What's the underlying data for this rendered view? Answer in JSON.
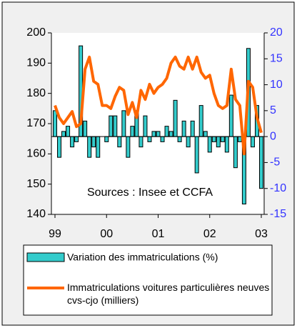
{
  "chart_data": {
    "type": "bar-line",
    "annotation": "Sources :  Insee et CCFA",
    "categories": [
      "99",
      null,
      null,
      null,
      null,
      null,
      null,
      null,
      null,
      null,
      null,
      null,
      "00",
      null,
      null,
      null,
      null,
      null,
      null,
      null,
      null,
      null,
      null,
      null,
      "01",
      null,
      null,
      null,
      null,
      null,
      null,
      null,
      null,
      null,
      null,
      null,
      "02",
      null,
      null,
      null,
      null,
      null,
      null,
      null,
      null,
      null,
      null,
      null,
      "03"
    ],
    "series": [
      {
        "name": "Variation des immatriculations (%)",
        "type": "bar",
        "axis": "y2",
        "color": "#33cccc",
        "values": [
          5,
          -4,
          1,
          2,
          -2,
          -1,
          17.5,
          3,
          -4,
          -2,
          -4,
          0,
          -1,
          4,
          4,
          -2,
          5,
          -4,
          2,
          5,
          -2,
          4,
          -1,
          1,
          1,
          -1,
          2,
          1,
          7,
          -1,
          3,
          -2,
          3,
          -7,
          6,
          1,
          -3,
          -1,
          -2,
          -1,
          -3,
          8,
          -6,
          -1,
          -13,
          17,
          -2,
          6,
          -10
        ]
      },
      {
        "name": "Immatriculations voitures particulières neuves cvs-cjo (milliers)",
        "type": "line",
        "axis": "y",
        "color": "#ff6600",
        "values": [
          176,
          172,
          170,
          172,
          174,
          169,
          170,
          188,
          192,
          184,
          183,
          176,
          176,
          175,
          179,
          182,
          181,
          173,
          177,
          172,
          181,
          178,
          183,
          180,
          182,
          183,
          185,
          190,
          192,
          189,
          188,
          192,
          188,
          192,
          187,
          185,
          186,
          180,
          176,
          175,
          176,
          188,
          178,
          176,
          160,
          184,
          182,
          172,
          167
        ]
      }
    ],
    "ylim": [
      140,
      200
    ],
    "yticks": [
      140,
      150,
      160,
      170,
      180,
      190,
      200
    ],
    "y2lim": [
      -15,
      20
    ],
    "y2ticks": [
      -15,
      -10,
      -5,
      0,
      5,
      10,
      15,
      20
    ]
  }
}
